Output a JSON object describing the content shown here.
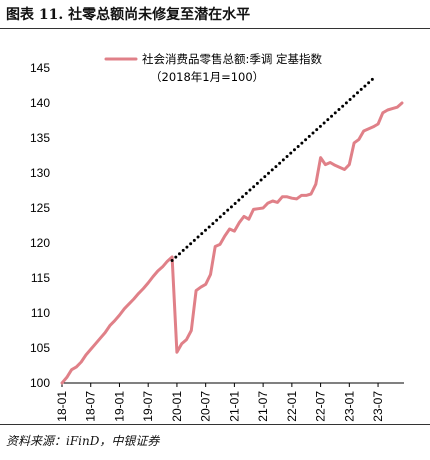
{
  "header": {
    "title": "图表 11. 社零总额尚未修复至潜在水平"
  },
  "footer": {
    "source": "资料来源：iFinD，中银证券"
  },
  "chart_data": {
    "type": "line",
    "title": "图表 11. 社零总额尚未修复至潜在水平",
    "xlabel": "",
    "ylabel": "",
    "ylim": [
      100,
      145
    ],
    "yticks": [
      100,
      105,
      110,
      115,
      120,
      125,
      130,
      135,
      140,
      145
    ],
    "x_categories": [
      "18-01",
      "18-02",
      "18-03",
      "18-04",
      "18-05",
      "18-06",
      "18-07",
      "18-08",
      "18-09",
      "18-10",
      "18-11",
      "18-12",
      "19-01",
      "19-02",
      "19-03",
      "19-04",
      "19-05",
      "19-06",
      "19-07",
      "19-08",
      "19-09",
      "19-10",
      "19-11",
      "19-12",
      "20-01",
      "20-02",
      "20-03",
      "20-04",
      "20-05",
      "20-06",
      "20-07",
      "20-08",
      "20-09",
      "20-10",
      "20-11",
      "20-12",
      "21-01",
      "21-02",
      "21-03",
      "21-04",
      "21-05",
      "21-06",
      "21-07",
      "21-08",
      "21-09",
      "21-10",
      "21-11",
      "21-12",
      "22-01",
      "22-02",
      "22-03",
      "22-04",
      "22-05",
      "22-06",
      "22-07",
      "22-08",
      "22-09",
      "22-10",
      "22-11",
      "22-12",
      "23-01",
      "23-02",
      "23-03",
      "23-04",
      "23-05",
      "23-06",
      "23-07",
      "23-08",
      "23-09",
      "23-10",
      "23-11",
      "23-12"
    ],
    "xtick_labels": [
      "18-01",
      "18-07",
      "19-01",
      "19-07",
      "20-01",
      "20-07",
      "21-01",
      "21-07",
      "22-01",
      "22-07",
      "23-01",
      "23-07"
    ],
    "legend": {
      "position": "top-center",
      "entries": [
        "社会消费品零售总额:季调 定基指数",
        "（2018年1月=100）"
      ]
    },
    "series": [
      {
        "name": "社会消费品零售总额:季调 定基指数（2018年1月=100）",
        "color": "#e08088",
        "values": [
          100.0,
          100.8,
          101.9,
          102.3,
          103.0,
          104.0,
          104.8,
          105.6,
          106.4,
          107.2,
          108.2,
          108.9,
          109.7,
          110.6,
          111.3,
          112.0,
          112.8,
          113.5,
          114.3,
          115.2,
          116.0,
          116.6,
          117.4,
          118.0,
          104.4,
          105.6,
          106.2,
          107.5,
          113.2,
          113.7,
          114.1,
          115.5,
          119.5,
          119.8,
          121.0,
          122.0,
          121.7,
          122.9,
          123.8,
          123.4,
          124.8,
          124.9,
          125.0,
          125.7,
          126.0,
          125.8,
          126.6,
          126.6,
          126.4,
          126.3,
          126.8,
          126.8,
          127.0,
          128.4,
          132.2,
          131.2,
          131.5,
          131.1,
          130.8,
          130.5,
          131.2,
          134.3,
          134.8,
          136.0,
          136.3,
          136.6,
          137.0,
          138.6,
          139.0,
          139.2,
          139.4,
          140.0
        ]
      },
      {
        "name": "潜在水平",
        "style": "dotted",
        "color": "#000000",
        "x": [
          "19-12",
          "23-06"
        ],
        "values": [
          117.5,
          143.5
        ]
      }
    ]
  }
}
